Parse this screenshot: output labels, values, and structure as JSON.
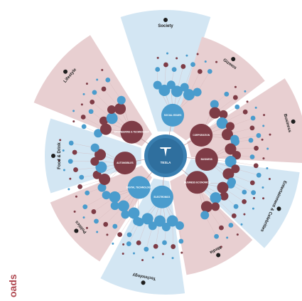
{
  "center": {
    "brand": "TESLA",
    "logo": "tesla-logo-icon"
  },
  "corner_fragment": "oads",
  "colors": {
    "pink": "#e8cfd1",
    "pink_dark": "#d9b6b9",
    "blue": "#d3e6f3",
    "maroon": "#7e3c46",
    "teal": "#4a9ccd",
    "center_ring": "#3a7fb0"
  },
  "sectors": [
    {
      "label": "Society",
      "icon": "globe-icon",
      "tone": "blue"
    },
    {
      "label": "Gizmos",
      "icon": "phone-icon",
      "tone": "pink"
    },
    {
      "label": "Business",
      "icon": "person-icon",
      "tone": "pink"
    },
    {
      "label": "Entertainment & Celebrities",
      "icon": "star-icon",
      "tone": "blue"
    },
    {
      "label": "Media",
      "icon": "newspaper-icon",
      "tone": "pink"
    },
    {
      "label": "Technology",
      "icon": "wifi-icon",
      "tone": "blue"
    },
    {
      "label": "Politics",
      "icon": "bank-icon",
      "tone": "pink"
    },
    {
      "label": "Food & Drink",
      "icon": "fork-knife-icon",
      "tone": "blue"
    },
    {
      "label": "Lifestyle",
      "icon": "family-icon",
      "tone": "pink"
    }
  ],
  "hubs": [
    {
      "label": "SOCIAL ISSUES",
      "tone": "blue"
    },
    {
      "label": "CORPORATION",
      "tone": "maroon"
    },
    {
      "label": "BUSINESS",
      "tone": "maroon"
    },
    {
      "label": "BUSINESS ECONOMICS",
      "tone": "maroon"
    },
    {
      "label": "ELECTRONICS",
      "tone": "blue"
    },
    {
      "label": "DIGITAL TECHNOLOGY",
      "tone": "blue"
    },
    {
      "label": "AUTOMOBILES",
      "tone": "maroon"
    },
    {
      "label": "ENGINEERING & TECHNOLOGY",
      "tone": "maroon"
    }
  ]
}
